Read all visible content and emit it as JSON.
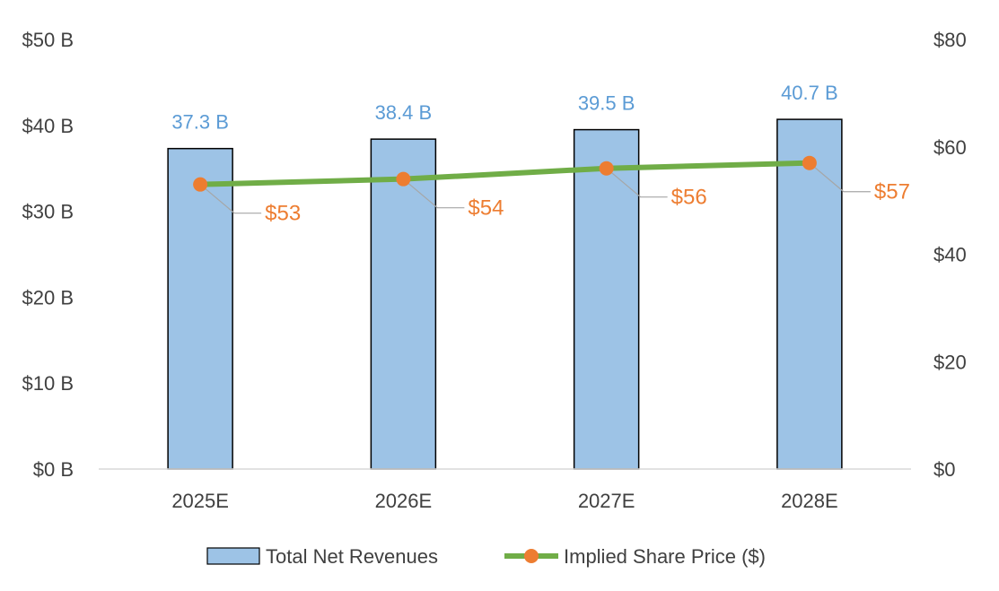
{
  "chart_data": {
    "type": "bar",
    "categories": [
      "2025E",
      "2026E",
      "2027E",
      "2028E"
    ],
    "series": [
      {
        "name": "Total Net Revenues",
        "type": "bar",
        "axis": "left",
        "values": [
          37.3,
          38.4,
          39.5,
          40.7
        ],
        "labels": [
          "37.3 B",
          "38.4 B",
          "39.5 B",
          "40.7 B"
        ]
      },
      {
        "name": "Implied Share Price ($)",
        "type": "line",
        "axis": "right",
        "values": [
          53,
          54,
          56,
          57
        ],
        "labels": [
          "$53",
          "$54",
          "$56",
          "$57"
        ]
      }
    ],
    "y_left": {
      "lim": [
        0,
        50
      ],
      "ticks": [
        0,
        10,
        20,
        30,
        40,
        50
      ],
      "tick_labels": [
        "$0 B",
        "$10 B",
        "$20 B",
        "$30 B",
        "$40 B",
        "$50 B"
      ]
    },
    "y_right": {
      "lim": [
        0,
        80
      ],
      "ticks": [
        0,
        20,
        40,
        60,
        80
      ],
      "tick_labels": [
        "$0",
        "$20",
        "$40",
        "$60",
        "$80"
      ]
    },
    "title": "",
    "xlabel": "",
    "grid": false,
    "legend": "bottom"
  },
  "colors": {
    "bar_fill": "#9dc3e6",
    "bar_stroke": "#000000",
    "bar_label": "#5b9bd5",
    "line": "#70ad47",
    "marker": "#ed7d31",
    "price_label": "#ed7d31",
    "leader": "#a6a6a6",
    "axis": "#d9d9d9"
  }
}
